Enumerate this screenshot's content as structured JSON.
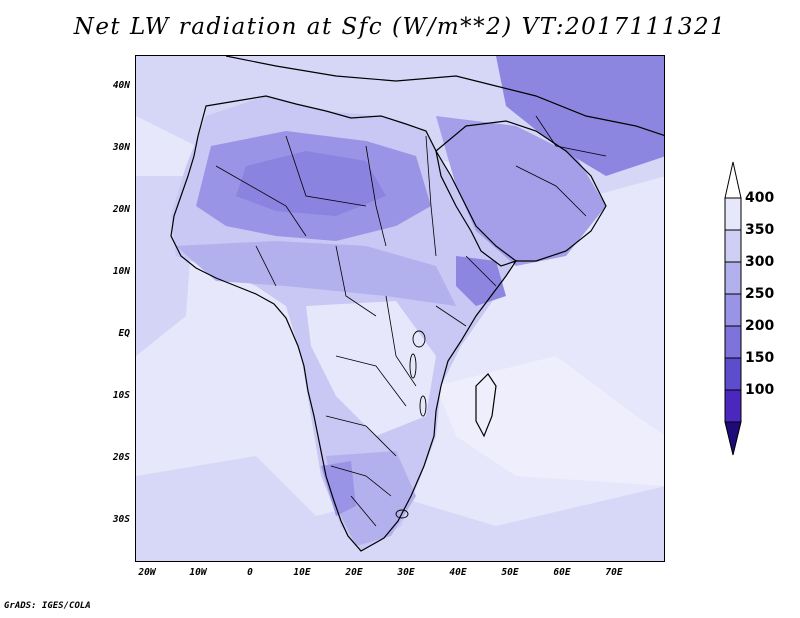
{
  "title": "Net LW radiation at Sfc (W/m**2) VT:2017111321",
  "lat_labels": [
    "40N",
    "30N",
    "20N",
    "10N",
    "EQ",
    "10S",
    "20S",
    "30S"
  ],
  "lon_labels": [
    "20W",
    "10W",
    "0",
    "10E",
    "20E",
    "30E",
    "40E",
    "50E",
    "60E",
    "70E"
  ],
  "colorbar": {
    "labels": [
      "400",
      "350",
      "300",
      "250",
      "200",
      "150",
      "100"
    ],
    "colors": [
      "#e7e7fb",
      "#cfcff5",
      "#b3b0ee",
      "#9a94e6",
      "#7d73da",
      "#5d4ccd",
      "#4a27bd"
    ]
  },
  "credit": "GrADS: IGES/COLA"
}
